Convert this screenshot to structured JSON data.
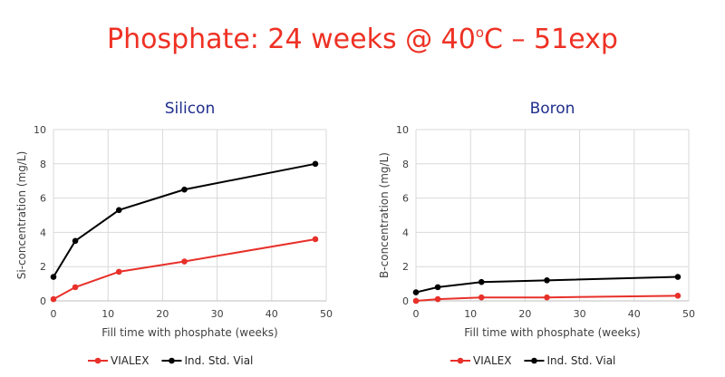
{
  "page_title": {
    "prefix": "Phosphate: 24 weeks @ 40",
    "superscript": "o",
    "suffix": "C – 51exp"
  },
  "colors": {
    "title": "#ee3124",
    "chart_title": "#1f2e8c",
    "vialex": "#e8302a",
    "ind_std_vial": "#000000"
  },
  "chart_data": [
    {
      "type": "line",
      "title": "Silicon",
      "xlabel": "Fill time with phosphate (weeks)",
      "ylabel": "Si-concentration (mg/L)",
      "xlim": [
        0,
        50
      ],
      "ylim": [
        0,
        10
      ],
      "xticks": [
        0,
        10,
        20,
        30,
        40,
        50
      ],
      "yticks": [
        0,
        2,
        4,
        6,
        8,
        10
      ],
      "grid": true,
      "legend": "bottom",
      "x": [
        0,
        4,
        12,
        24,
        48
      ],
      "series": [
        {
          "name": "VIALEX",
          "color": "#e8302a",
          "values": [
            0.1,
            0.8,
            1.7,
            2.3,
            3.6
          ]
        },
        {
          "name": "Ind. Std. Vial",
          "color": "#000000",
          "values": [
            1.4,
            3.5,
            5.3,
            6.5,
            8.0
          ]
        }
      ]
    },
    {
      "type": "line",
      "title": "Boron",
      "xlabel": "Fill time with phosphate (weeks)",
      "ylabel": "B-concentration (mg/L)",
      "xlim": [
        0,
        50
      ],
      "ylim": [
        0,
        10
      ],
      "xticks": [
        0,
        10,
        20,
        30,
        40,
        50
      ],
      "yticks": [
        0,
        2,
        4,
        6,
        8,
        10
      ],
      "grid": true,
      "legend": "bottom",
      "x": [
        0,
        4,
        12,
        24,
        48
      ],
      "series": [
        {
          "name": "VIALEX",
          "color": "#e8302a",
          "values": [
            0.0,
            0.1,
            0.2,
            0.2,
            0.3
          ]
        },
        {
          "name": "Ind. Std. Vial",
          "color": "#000000",
          "values": [
            0.5,
            0.8,
            1.1,
            1.2,
            1.4
          ]
        }
      ]
    }
  ]
}
